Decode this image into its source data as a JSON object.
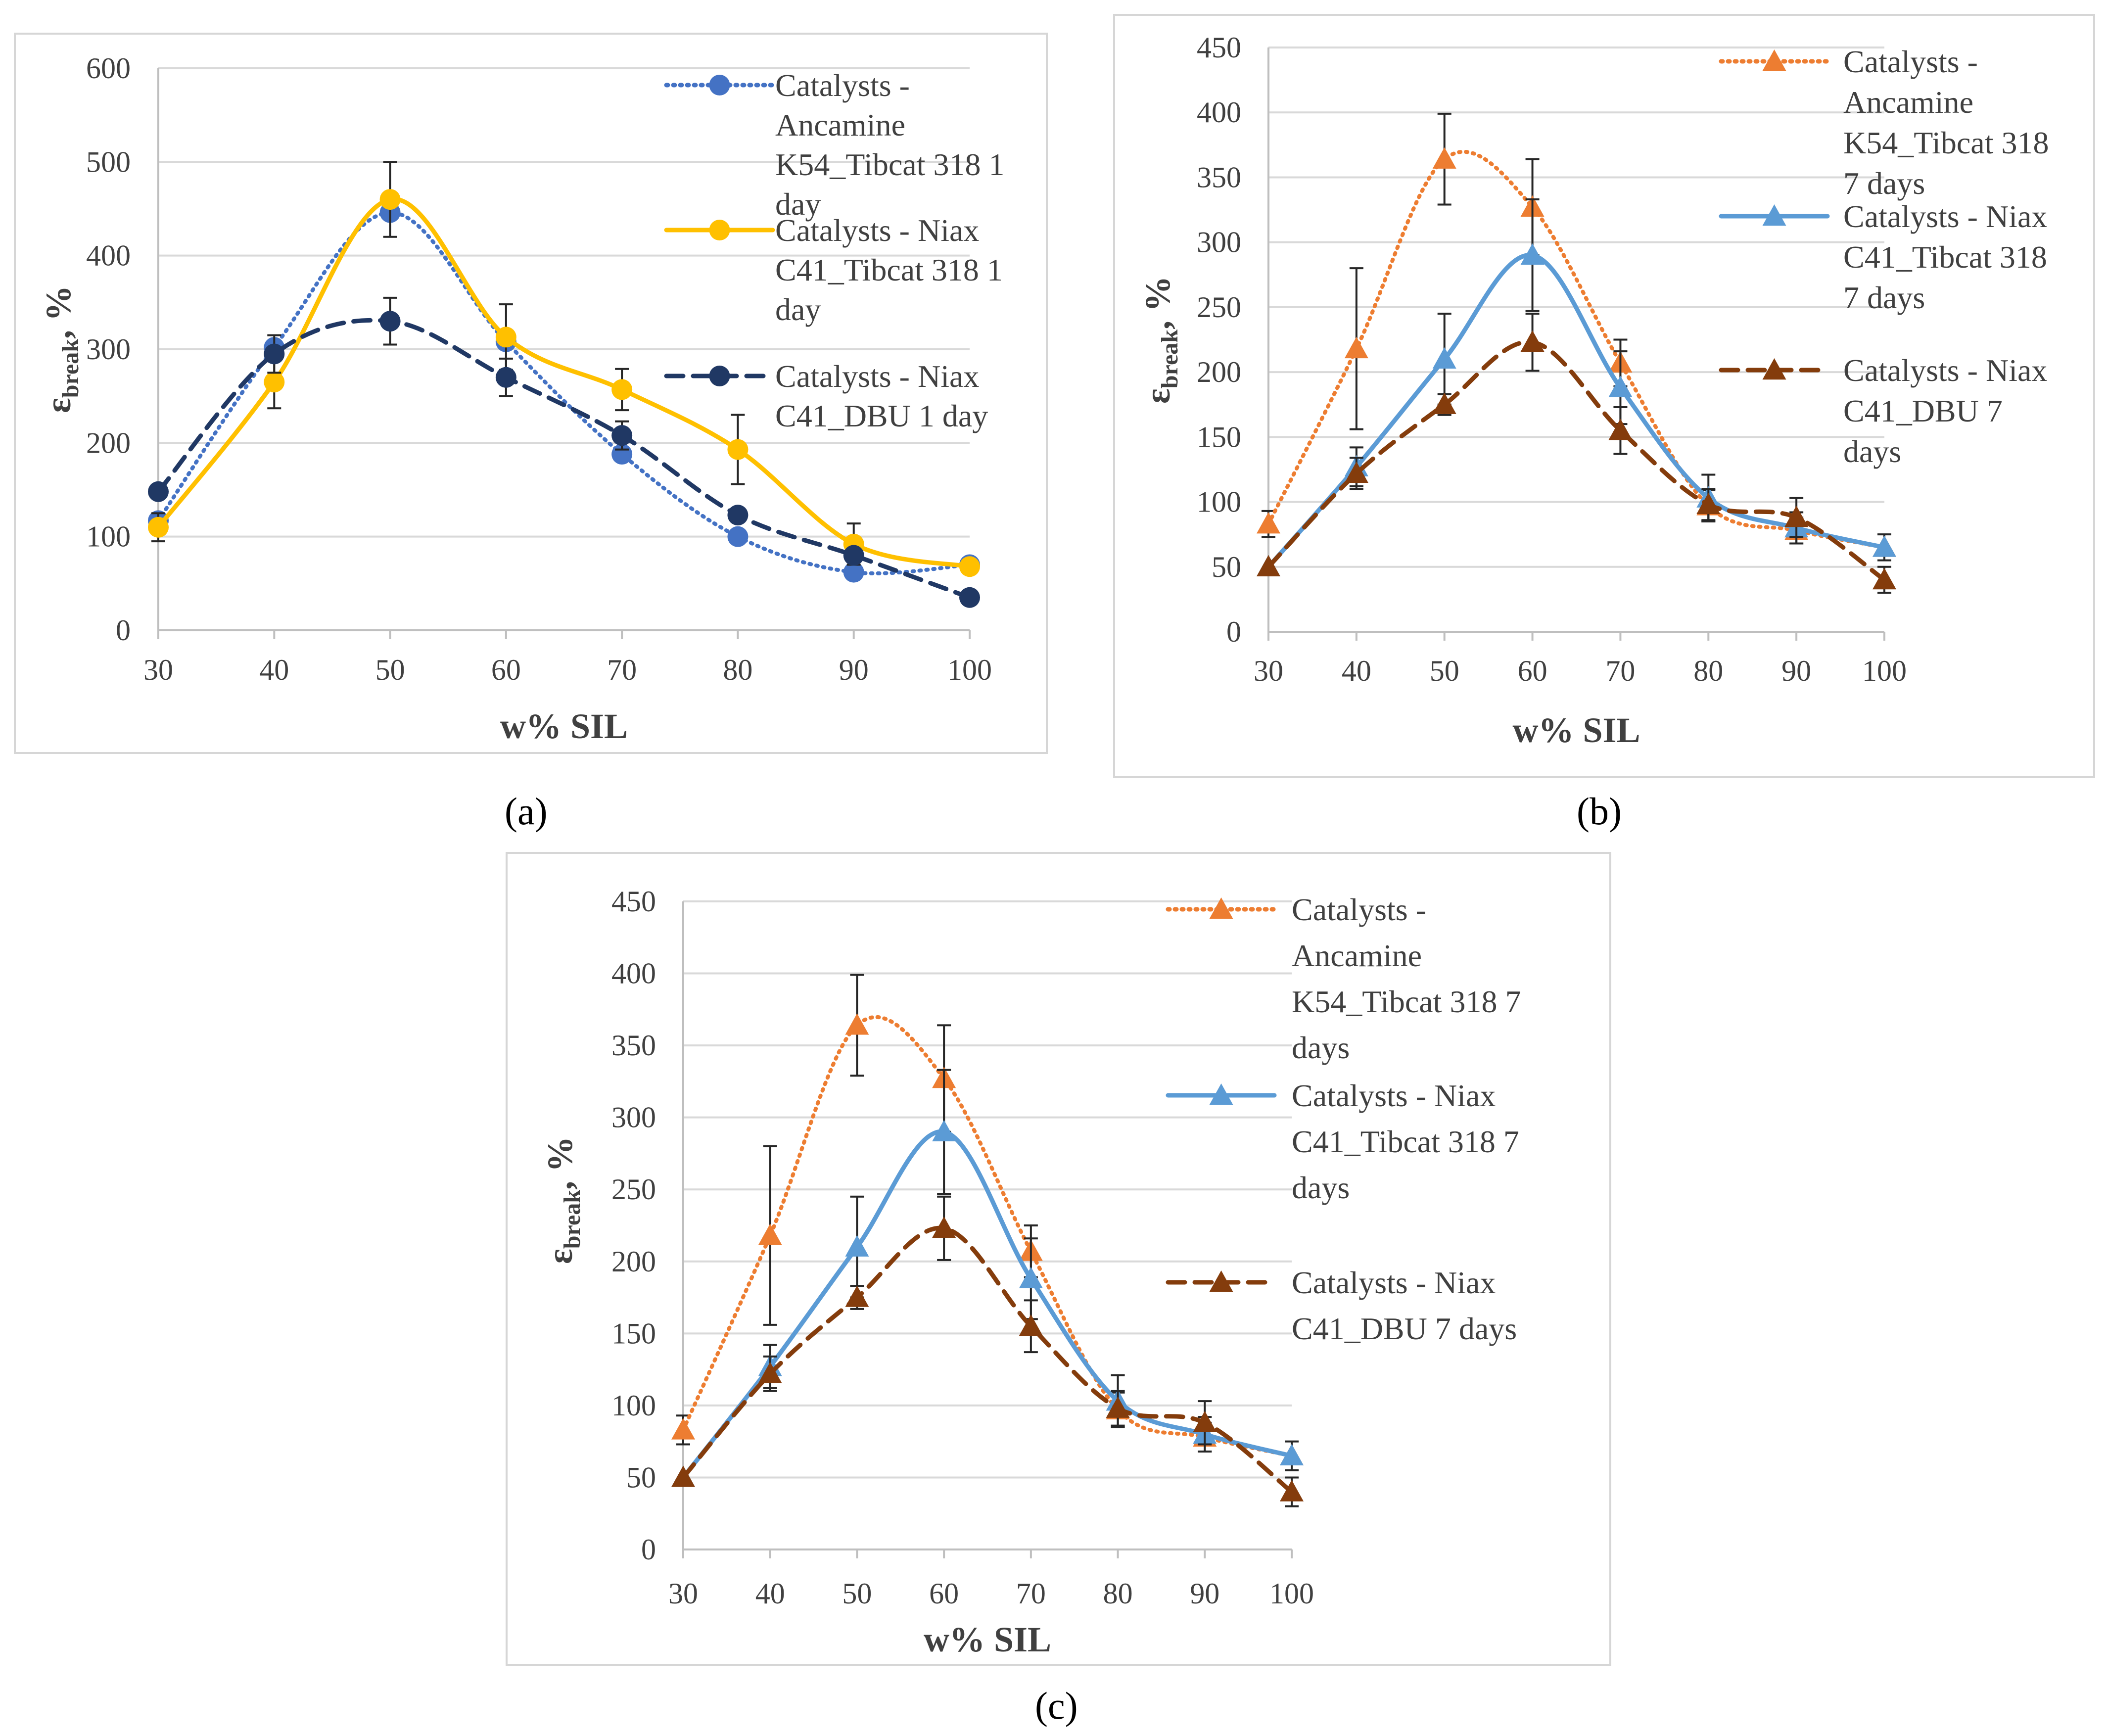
{
  "captions": [
    "(a)",
    "(b)",
    "(c)"
  ],
  "chart_data": [
    {
      "id": "a",
      "type": "line",
      "xlabel": "w% SIL",
      "ylabel_main": "ε",
      "ylabel_sub": "break",
      "ylabel_suffix": ", %",
      "x": [
        30,
        40,
        50,
        60,
        70,
        80,
        90,
        100
      ],
      "xlim": [
        30,
        100
      ],
      "ylim": [
        0,
        600
      ],
      "yticks": [
        0,
        100,
        200,
        300,
        400,
        500,
        600
      ],
      "xticks": [
        30,
        40,
        50,
        60,
        70,
        80,
        90,
        100
      ],
      "legend_position": "right",
      "series": [
        {
          "name": "Catalysts - Ancamine K54_Tibcat 318 1 day",
          "legend_lines": [
            "Catalysts -",
            "Ancamine",
            "K54_Tibcat 318 1",
            "day"
          ],
          "values": [
            117,
            302,
            446,
            308,
            188,
            100,
            62,
            70
          ],
          "errors": [
            0,
            0,
            0,
            0,
            0,
            0,
            0,
            0
          ],
          "color": "#4472C4",
          "dash": "dotted",
          "marker": "circle"
        },
        {
          "name": "Catalysts - Niax C41_Tibcat 318 1 day",
          "legend_lines": [
            "Catalysts - Niax",
            "C41_Tibcat 318 1",
            "day"
          ],
          "values": [
            110,
            265,
            460,
            313,
            257,
            193,
            92,
            68
          ],
          "errors": [
            15,
            28,
            40,
            35,
            22,
            37,
            22,
            0
          ],
          "color": "#FFC000",
          "dash": "solid",
          "marker": "circle"
        },
        {
          "name": "Catalysts - Niax C41_DBU 1 day",
          "legend_lines": [
            "Catalysts - Niax",
            "C41_DBU 1 day"
          ],
          "values": [
            148,
            295,
            330,
            270,
            208,
            123,
            80,
            35
          ],
          "errors": [
            0,
            20,
            25,
            20,
            15,
            0,
            0,
            0
          ],
          "color": "#203864",
          "dash": "dashed",
          "marker": "circle"
        }
      ]
    },
    {
      "id": "b",
      "type": "line",
      "xlabel": "w% SIL",
      "ylabel_main": "ε",
      "ylabel_sub": "break",
      "ylabel_suffix": ", %",
      "x": [
        30,
        40,
        50,
        60,
        70,
        80,
        90,
        100
      ],
      "xlim": [
        30,
        100
      ],
      "ylim": [
        0,
        450
      ],
      "yticks": [
        0,
        50,
        100,
        150,
        200,
        250,
        300,
        350,
        400,
        450
      ],
      "xticks": [
        30,
        40,
        50,
        60,
        70,
        80,
        90,
        100
      ],
      "legend_position": "right",
      "series": [
        {
          "name": "Catalysts - Ancamine K54_Tibcat 318 7 days",
          "legend_lines": [
            "Catalysts -",
            "Ancamine",
            "K54_Tibcat 318",
            "7 days"
          ],
          "values": [
            83,
            218,
            364,
            327,
            207,
            97,
            78,
            65
          ],
          "errors": [
            10,
            62,
            35,
            37,
            18,
            12,
            10,
            0
          ],
          "color": "#ED7D31",
          "dash": "dotted",
          "marker": "triangle"
        },
        {
          "name": "Catalysts - Niax C41_Tibcat 318 7 days",
          "legend_lines": [
            "Catalysts - Niax",
            "C41_Tibcat 318",
            "7 days"
          ],
          "values": [
            50,
            127,
            210,
            290,
            188,
            103,
            80,
            65
          ],
          "errors": [
            0,
            15,
            35,
            43,
            28,
            18,
            12,
            10
          ],
          "color": "#5B9BD5",
          "dash": "solid",
          "marker": "triangle"
        },
        {
          "name": "Catalysts - Niax C41_DBU 7 days",
          "legend_lines": [
            "Catalysts - Niax",
            "C41_DBU 7",
            "days"
          ],
          "values": [
            50,
            122,
            175,
            223,
            155,
            98,
            88,
            40
          ],
          "errors": [
            0,
            12,
            8,
            22,
            18,
            12,
            15,
            10
          ],
          "color": "#843C0C",
          "dash": "dashed",
          "marker": "triangle"
        }
      ]
    },
    {
      "id": "c",
      "type": "line",
      "xlabel": "w% SIL",
      "ylabel_main": "ε",
      "ylabel_sub": "break",
      "ylabel_suffix": ", %",
      "x": [
        30,
        40,
        50,
        60,
        70,
        80,
        90,
        100
      ],
      "xlim": [
        30,
        100
      ],
      "ylim": [
        0,
        450
      ],
      "yticks": [
        0,
        50,
        100,
        150,
        200,
        250,
        300,
        350,
        400,
        450
      ],
      "xticks": [
        30,
        40,
        50,
        60,
        70,
        80,
        90,
        100
      ],
      "legend_position": "right",
      "series": [
        {
          "name": "Catalysts - Ancamine K54_Tibcat 318 7 days",
          "legend_lines": [
            "Catalysts -",
            "Ancamine",
            "K54_Tibcat 318 7",
            "days"
          ],
          "values": [
            83,
            218,
            364,
            327,
            207,
            97,
            78,
            65
          ],
          "errors": [
            10,
            62,
            35,
            37,
            18,
            12,
            10,
            0
          ],
          "color": "#ED7D31",
          "dash": "dotted",
          "marker": "triangle"
        },
        {
          "name": "Catalysts - Niax C41_Tibcat 318 7 days",
          "legend_lines": [
            "Catalysts - Niax",
            "C41_Tibcat 318 7",
            "days"
          ],
          "values": [
            50,
            127,
            210,
            290,
            188,
            103,
            80,
            65
          ],
          "errors": [
            0,
            15,
            35,
            43,
            28,
            18,
            12,
            10
          ],
          "color": "#5B9BD5",
          "dash": "solid",
          "marker": "triangle"
        },
        {
          "name": "Catalysts - Niax C41_DBU 7 days",
          "legend_lines": [
            "Catalysts - Niax",
            "C41_DBU 7 days"
          ],
          "values": [
            50,
            122,
            175,
            223,
            155,
            98,
            88,
            40
          ],
          "errors": [
            0,
            12,
            8,
            22,
            18,
            12,
            15,
            10
          ],
          "color": "#843C0C",
          "dash": "dashed",
          "marker": "triangle"
        }
      ]
    }
  ]
}
